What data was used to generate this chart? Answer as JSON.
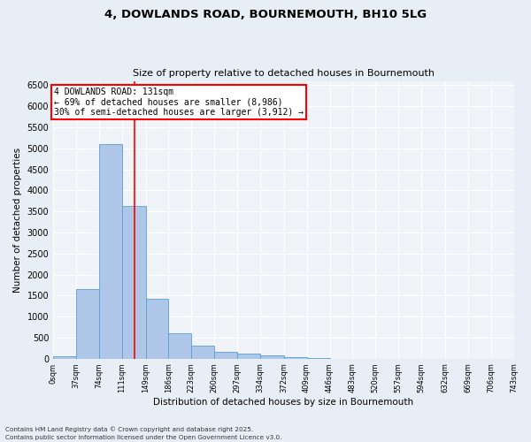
{
  "title_line1": "4, DOWLANDS ROAD, BOURNEMOUTH, BH10 5LG",
  "title_line2": "Size of property relative to detached houses in Bournemouth",
  "xlabel": "Distribution of detached houses by size in Bournemouth",
  "ylabel": "Number of detached properties",
  "bar_values": [
    55,
    1650,
    5100,
    3620,
    1420,
    600,
    305,
    155,
    110,
    75,
    35,
    15,
    0,
    0,
    0,
    0,
    0,
    0,
    0,
    0
  ],
  "bin_edges": [
    0,
    37,
    74,
    111,
    149,
    186,
    223,
    260,
    297,
    334,
    372,
    409,
    446,
    483,
    520,
    557,
    594,
    632,
    669,
    706,
    743
  ],
  "tick_labels": [
    "0sqm",
    "37sqm",
    "74sqm",
    "111sqm",
    "149sqm",
    "186sqm",
    "223sqm",
    "260sqm",
    "297sqm",
    "334sqm",
    "372sqm",
    "409sqm",
    "446sqm",
    "483sqm",
    "520sqm",
    "557sqm",
    "594sqm",
    "632sqm",
    "669sqm",
    "706sqm",
    "743sqm"
  ],
  "bar_color": "#aec6e8",
  "bar_edge_color": "#5a9fd4",
  "vline_x": 131,
  "vline_color": "red",
  "annotation_title": "4 DOWLANDS ROAD: 131sqm",
  "annotation_line1": "← 69% of detached houses are smaller (8,986)",
  "annotation_line2": "30% of semi-detached houses are larger (3,912) →",
  "annotation_box_color": "red",
  "ylim": [
    0,
    6600
  ],
  "yticks": [
    0,
    500,
    1000,
    1500,
    2000,
    2500,
    3000,
    3500,
    4000,
    4500,
    5000,
    5500,
    6000,
    6500
  ],
  "footnote1": "Contains HM Land Registry data © Crown copyright and database right 2025.",
  "footnote2": "Contains public sector information licensed under the Open Government Licence v3.0.",
  "bg_color": "#e8eef5",
  "plot_bg_color": "#f0f4f8"
}
